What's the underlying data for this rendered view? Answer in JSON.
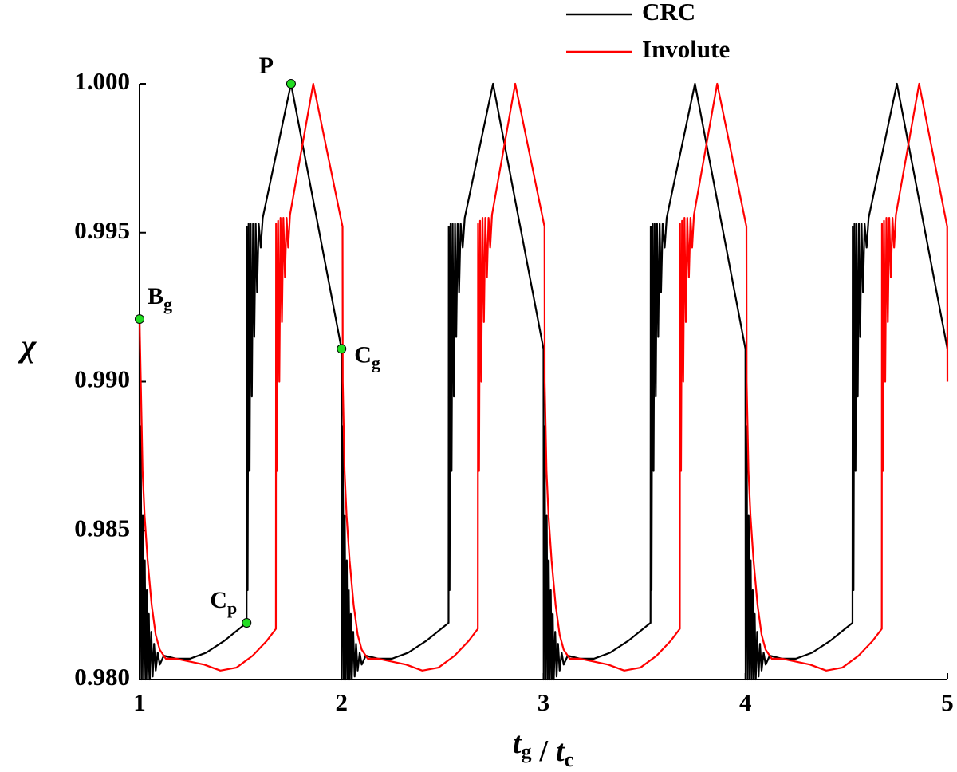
{
  "chart_data": {
    "type": "line",
    "ylabel": "χ",
    "xlabel": [
      {
        "text": "t",
        "sub": "g"
      },
      {
        "text": "/"
      },
      {
        "text": "t",
        "sub": "c"
      }
    ],
    "xlim": [
      1,
      5
    ],
    "xticks": [
      1,
      2,
      3,
      4,
      5
    ],
    "ylim": [
      0.98,
      1.0
    ],
    "yticks": [
      {
        "value": 0.98,
        "label": "0.980"
      },
      {
        "value": 0.985,
        "label": "0.985"
      },
      {
        "value": 0.99,
        "label": "0.990"
      },
      {
        "value": 0.995,
        "label": "0.995"
      },
      {
        "value": 1.0,
        "label": "1.000"
      }
    ],
    "legend": "upper right",
    "series": [
      {
        "name": "CRC",
        "color": "#000000",
        "x": [
          1,
          1.001,
          1.006,
          1.011,
          1.016,
          1.021,
          1.026,
          1.031,
          1.036,
          1.041,
          1.046,
          1.051,
          1.058,
          1.065,
          1.072,
          1.08,
          1.09,
          1.1,
          1.12,
          1.18,
          1.25,
          1.33,
          1.42,
          1.53,
          1.531,
          1.535,
          1.54,
          1.545,
          1.55,
          1.556,
          1.562,
          1.568,
          1.575,
          1.582,
          1.59,
          1.6,
          1.61,
          1.75,
          2,
          2.001,
          2.006,
          2.011,
          2.016,
          2.021,
          2.026,
          2.031,
          2.036,
          2.041,
          2.046,
          2.051,
          2.058,
          2.065,
          2.072,
          2.08,
          2.09,
          2.1,
          2.12,
          2.18,
          2.25,
          2.33,
          2.42,
          2.53,
          2.531,
          2.535,
          2.54,
          2.545,
          2.55,
          2.556,
          2.562,
          2.568,
          2.575,
          2.582,
          2.59,
          2.6,
          2.61,
          2.75,
          3,
          3.001,
          3.006,
          3.011,
          3.016,
          3.021,
          3.026,
          3.031,
          3.036,
          3.041,
          3.046,
          3.051,
          3.058,
          3.065,
          3.072,
          3.08,
          3.09,
          3.1,
          3.12,
          3.18,
          3.25,
          3.33,
          3.42,
          3.53,
          3.531,
          3.535,
          3.54,
          3.545,
          3.55,
          3.556,
          3.562,
          3.568,
          3.575,
          3.582,
          3.59,
          3.6,
          3.61,
          3.75,
          4,
          4.001,
          4.006,
          4.011,
          4.016,
          4.021,
          4.026,
          4.031,
          4.036,
          4.041,
          4.046,
          4.051,
          4.058,
          4.065,
          4.072,
          4.08,
          4.09,
          4.1,
          4.12,
          4.18,
          4.25,
          4.33,
          4.42,
          4.53,
          4.531,
          4.535,
          4.54,
          4.545,
          4.55,
          4.556,
          4.562,
          4.568,
          4.575,
          4.582,
          4.59,
          4.6,
          4.61,
          4.75,
          5
        ],
        "values": [
          0.9921,
          0.98,
          0.9885,
          0.98,
          0.9855,
          0.98,
          0.984,
          0.98,
          0.983,
          0.98,
          0.9822,
          0.98,
          0.9816,
          0.9801,
          0.9812,
          0.9803,
          0.9809,
          0.9805,
          0.9808,
          0.9807,
          0.9807,
          0.9809,
          0.9813,
          0.9819,
          0.9952,
          0.983,
          0.9953,
          0.987,
          0.9953,
          0.9895,
          0.9953,
          0.9915,
          0.9953,
          0.993,
          0.9953,
          0.9945,
          0.9955,
          1.0,
          0.9911,
          0.98,
          0.9885,
          0.98,
          0.9855,
          0.98,
          0.984,
          0.98,
          0.983,
          0.98,
          0.9822,
          0.98,
          0.9816,
          0.9801,
          0.9812,
          0.9803,
          0.9809,
          0.9805,
          0.9808,
          0.9807,
          0.9807,
          0.9809,
          0.9813,
          0.9819,
          0.9952,
          0.983,
          0.9953,
          0.987,
          0.9953,
          0.9895,
          0.9953,
          0.9915,
          0.9953,
          0.993,
          0.9953,
          0.9945,
          0.9955,
          1.0,
          0.9911,
          0.98,
          0.9885,
          0.98,
          0.9855,
          0.98,
          0.984,
          0.98,
          0.983,
          0.98,
          0.9822,
          0.98,
          0.9816,
          0.9801,
          0.9812,
          0.9803,
          0.9809,
          0.9805,
          0.9808,
          0.9807,
          0.9807,
          0.9809,
          0.9813,
          0.9819,
          0.9952,
          0.983,
          0.9953,
          0.987,
          0.9953,
          0.9895,
          0.9953,
          0.9915,
          0.9953,
          0.993,
          0.9953,
          0.9945,
          0.9955,
          1.0,
          0.9911,
          0.98,
          0.9885,
          0.98,
          0.9855,
          0.98,
          0.984,
          0.98,
          0.983,
          0.98,
          0.9822,
          0.98,
          0.9816,
          0.9801,
          0.9812,
          0.9803,
          0.9809,
          0.9805,
          0.9808,
          0.9807,
          0.9807,
          0.9809,
          0.9813,
          0.9819,
          0.9952,
          0.983,
          0.9953,
          0.987,
          0.9953,
          0.9895,
          0.9953,
          0.9915,
          0.9953,
          0.993,
          0.9953,
          0.9945,
          0.9955,
          1.0,
          0.9911
        ]
      },
      {
        "name": "Involute",
        "color": "#ff0000",
        "x": [
          1,
          1.015,
          1.025,
          1.04,
          1.06,
          1.08,
          1.1,
          1.13,
          1.18,
          1.25,
          1.32,
          1.4,
          1.48,
          1.56,
          1.63,
          1.675,
          1.676,
          1.681,
          1.686,
          1.692,
          1.698,
          1.705,
          1.712,
          1.72,
          1.728,
          1.736,
          1.745,
          1.86,
          2.005,
          2.006,
          2.015,
          2.025,
          2.04,
          2.06,
          2.08,
          2.1,
          2.13,
          2.18,
          2.25,
          2.32,
          2.4,
          2.48,
          2.56,
          2.63,
          2.675,
          2.676,
          2.681,
          2.686,
          2.692,
          2.698,
          2.705,
          2.712,
          2.72,
          2.728,
          2.736,
          2.745,
          2.86,
          3.005,
          3.006,
          3.015,
          3.025,
          3.04,
          3.06,
          3.08,
          3.1,
          3.13,
          3.18,
          3.25,
          3.32,
          3.4,
          3.48,
          3.56,
          3.63,
          3.675,
          3.676,
          3.681,
          3.686,
          3.692,
          3.698,
          3.705,
          3.712,
          3.72,
          3.728,
          3.736,
          3.745,
          3.86,
          4.005,
          4.006,
          4.015,
          4.025,
          4.04,
          4.06,
          4.08,
          4.1,
          4.13,
          4.18,
          4.25,
          4.32,
          4.4,
          4.48,
          4.56,
          4.63,
          4.675,
          4.676,
          4.681,
          4.686,
          4.692,
          4.698,
          4.705,
          4.712,
          4.72,
          4.728,
          4.736,
          4.745,
          4.86,
          4.999,
          5
        ],
        "values": [
          0.9921,
          0.987,
          0.9855,
          0.984,
          0.9825,
          0.9815,
          0.981,
          0.9807,
          0.9807,
          0.9806,
          0.9805,
          0.9803,
          0.9804,
          0.9808,
          0.9813,
          0.9817,
          0.9953,
          0.987,
          0.9954,
          0.99,
          0.9955,
          0.992,
          0.9955,
          0.9935,
          0.9955,
          0.9945,
          0.9956,
          1.0,
          0.9952,
          0.99,
          0.987,
          0.9855,
          0.984,
          0.9825,
          0.9815,
          0.981,
          0.9807,
          0.9807,
          0.9806,
          0.9805,
          0.9803,
          0.9804,
          0.9808,
          0.9813,
          0.9817,
          0.9953,
          0.987,
          0.9954,
          0.99,
          0.9955,
          0.992,
          0.9955,
          0.9935,
          0.9955,
          0.9945,
          0.9956,
          1.0,
          0.9952,
          0.99,
          0.987,
          0.9855,
          0.984,
          0.9825,
          0.9815,
          0.981,
          0.9807,
          0.9807,
          0.9806,
          0.9805,
          0.9803,
          0.9804,
          0.9808,
          0.9813,
          0.9817,
          0.9953,
          0.987,
          0.9954,
          0.99,
          0.9955,
          0.992,
          0.9955,
          0.9935,
          0.9955,
          0.9945,
          0.9956,
          1.0,
          0.9952,
          0.99,
          0.987,
          0.9855,
          0.984,
          0.9825,
          0.9815,
          0.981,
          0.9807,
          0.9807,
          0.9806,
          0.9805,
          0.9803,
          0.9804,
          0.9808,
          0.9813,
          0.9817,
          0.9953,
          0.987,
          0.9954,
          0.99,
          0.9955,
          0.992,
          0.9955,
          0.9935,
          0.9955,
          0.9945,
          0.9956,
          1.0,
          0.9952,
          0.99
        ]
      }
    ],
    "annotations": [
      {
        "text": "P",
        "x": 1.75,
        "y": 1.0,
        "color": "#22dd22"
      },
      {
        "text": "B",
        "sub": "g",
        "x": 1.0,
        "y": 0.9921,
        "color": "#22dd22"
      },
      {
        "text": "C",
        "sub": "g",
        "x": 2.0,
        "y": 0.9911,
        "color": "#22dd22"
      },
      {
        "text": "C",
        "sub": "p",
        "x": 1.53,
        "y": 0.9819,
        "color": "#22dd22"
      }
    ]
  }
}
